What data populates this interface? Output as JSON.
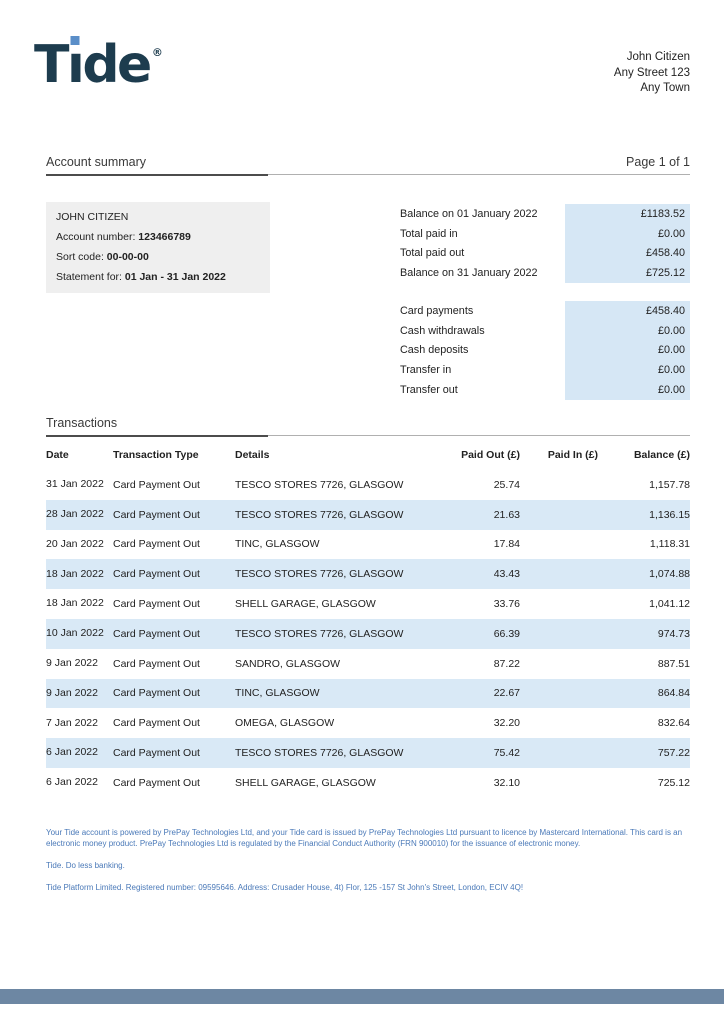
{
  "brand": {
    "logo_text_t": "T",
    "logo_text_i": "ı",
    "logo_text_de": "de",
    "registered_mark": "®"
  },
  "recipient": {
    "lines": [
      "John Citizen",
      "Any Street 123",
      "Any Town"
    ]
  },
  "header": {
    "title": "Account summary",
    "page": "Page 1 of 1"
  },
  "account_info": {
    "name": "JOHN CITIZEN",
    "account_number_label": "Account number: ",
    "account_number": "123466789",
    "sort_code_label": "Sort code: ",
    "sort_code": "00-00-00",
    "statement_label": "Statement for: ",
    "statement_period": "01 Jan - 31 Jan 2022"
  },
  "balance_summary": {
    "rows": [
      {
        "label": "Balance on 01 January 2022",
        "value": "£1183.52"
      },
      {
        "label": "Total paid in",
        "value": "£0.00"
      },
      {
        "label": "Total paid out",
        "value": "£458.40"
      },
      {
        "label": "Balance on 31 January 2022",
        "value": "£725.12"
      }
    ]
  },
  "activity_summary": {
    "rows": [
      {
        "label": "Card payments",
        "value": "£458.40"
      },
      {
        "label": "Cash withdrawals",
        "value": "£0.00"
      },
      {
        "label": "Cash deposits",
        "value": "£0.00"
      },
      {
        "label": "Transfer in",
        "value": "£0.00"
      },
      {
        "label": "Transfer out",
        "value": "£0.00"
      }
    ]
  },
  "transactions": {
    "title": "Transactions",
    "columns": [
      "Date",
      "Transaction Type",
      "Details",
      "Paid Out (£)",
      "Paid In (£)",
      "Balance (£)"
    ],
    "rows": [
      {
        "date": "31 Jan 2022",
        "type": "Card Payment Out",
        "details": "TESCO STORES 7726, GLASGOW",
        "paid_out": "25.74",
        "paid_in": "",
        "balance": "1,157.78"
      },
      {
        "date": "28 Jan 2022",
        "type": "Card Payment Out",
        "details": "TESCO STORES 7726, GLASGOW",
        "paid_out": "21.63",
        "paid_in": "",
        "balance": "1,136.15"
      },
      {
        "date": "20 Jan 2022",
        "type": "Card Payment Out",
        "details": "TINC, GLASGOW",
        "paid_out": "17.84",
        "paid_in": "",
        "balance": "1,118.31"
      },
      {
        "date": "18 Jan 2022",
        "type": "Card Payment Out",
        "details": "TESCO STORES 7726, GLASGOW",
        "paid_out": "43.43",
        "paid_in": "",
        "balance": "1,074.88"
      },
      {
        "date": "18 Jan 2022",
        "type": "Card Payment Out",
        "details": "SHELL GARAGE, GLASGOW",
        "paid_out": "33.76",
        "paid_in": "",
        "balance": "1,041.12"
      },
      {
        "date": "10 Jan 2022",
        "type": "Card Payment Out",
        "details": "TESCO STORES 7726, GLASGOW",
        "paid_out": "66.39",
        "paid_in": "",
        "balance": "974.73"
      },
      {
        "date": "9 Jan 2022",
        "type": "Card Payment Out",
        "details": "SANDRO, GLASGOW",
        "paid_out": "87.22",
        "paid_in": "",
        "balance": "887.51"
      },
      {
        "date": "9 Jan 2022",
        "type": "Card Payment Out",
        "details": "TINC, GLASGOW",
        "paid_out": "22.67",
        "paid_in": "",
        "balance": "864.84"
      },
      {
        "date": "7 Jan 2022",
        "type": "Card Payment Out",
        "details": "OMEGA, GLASGOW",
        "paid_out": "32.20",
        "paid_in": "",
        "balance": "832.64"
      },
      {
        "date": "6 Jan 2022",
        "type": "Card Payment Out",
        "details": "TESCO STORES 7726, GLASGOW",
        "paid_out": "75.42",
        "paid_in": "",
        "balance": "757.22"
      },
      {
        "date": "6 Jan 2022",
        "type": "Card Payment Out",
        "details": "SHELL GARAGE, GLASGOW",
        "paid_out": "32.10",
        "paid_in": "",
        "balance": "725.12"
      }
    ]
  },
  "footer": {
    "regulatory": "Your Tide account is powered by PrePay Technologies Ltd, and your Tide card is issued by PrePay Technologies Ltd pursuant to licence by Mastercard International. This card is an electronic money product. PrePay Technologies Ltd is regulated by the Financial Conduct Authority (FRN 900010) for the issuance of electronic money.",
    "tagline": "Tide. Do less banking.",
    "company": "Tide Platform Limited. Registered number: 09595646. Address: Crusader House, 4t) Flor, 125 -157 St John's Street, London, ECIV 4Q!"
  },
  "colors": {
    "logo": "#1d3c4e",
    "logo_dot": "#5a8ec8",
    "highlight": "#d6e7f5",
    "stripe": "#d9e9f6",
    "info_bg": "#efefef",
    "footer_blue": "#4a79b8",
    "bar": "#6d87a3"
  }
}
